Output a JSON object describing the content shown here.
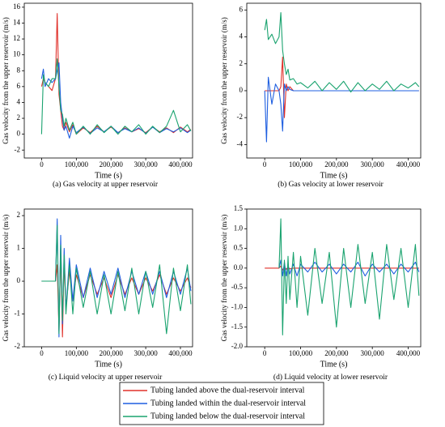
{
  "chart_data": [
    {
      "type": "line",
      "caption": "(a) Gas velocity at upper reservoir",
      "xlabel": "Time (s)",
      "ylabel": "Gas velocity from the upper reservoir (m/s)",
      "x": [
        0,
        5000,
        10000,
        20000,
        30000,
        40000,
        45000,
        50000,
        55000,
        60000,
        65000,
        70000,
        80000,
        90000,
        100000,
        120000,
        140000,
        160000,
        180000,
        200000,
        220000,
        240000,
        260000,
        280000,
        300000,
        320000,
        340000,
        360000,
        380000,
        400000,
        420000,
        430000
      ],
      "xlim": [
        -50000,
        435000
      ],
      "xticks": [
        0,
        {
          "value": 100000,
          "label": "100,000"
        },
        {
          "value": 200000,
          "label": "200,000"
        },
        {
          "value": 300000,
          "label": "300,000"
        },
        {
          "value": 400000,
          "label": "400,000"
        }
      ],
      "ylim": [
        -3,
        16.5
      ],
      "yticks": [
        -2,
        0,
        2,
        4,
        6,
        8,
        10,
        12,
        14,
        16
      ],
      "series": [
        {
          "name": "Tubing landed above the dual-reservoir interval",
          "color": "#e0302a",
          "values": [
            6,
            7,
            6.5,
            6,
            5.5,
            7,
            15.2,
            5,
            3,
            1,
            0.5,
            1.5,
            0.3,
            1.2,
            0,
            0.8,
            0.2,
            1,
            0.3,
            0.9,
            0.2,
            0.8,
            0.3,
            0.7,
            0.2,
            0.9,
            0.3,
            0.8,
            0.2,
            0.9,
            0.3,
            0.6
          ]
        },
        {
          "name": "Tubing landed within the dual-reservoir interval",
          "color": "#1f5fe0",
          "values": [
            7,
            8.2,
            6,
            7,
            6.5,
            7,
            8,
            9,
            4,
            2,
            0.5,
            1,
            -0.5,
            1,
            0.2,
            0.9,
            0.1,
            0.8,
            0.3,
            1,
            0.2,
            0.7,
            0.3,
            0.8,
            0.1,
            0.9,
            0.2,
            0.7,
            0.3,
            0.8,
            0.2,
            0.5
          ]
        },
        {
          "name": "Tubing landed below the dual-reservoir interval",
          "color": "#1aa36f",
          "values": [
            0,
            7.5,
            6.5,
            6,
            7,
            7,
            9.5,
            6,
            3,
            2.5,
            1,
            2,
            0.5,
            1.5,
            0,
            1,
            0,
            1.2,
            0.2,
            1,
            0,
            1,
            0.3,
            1.2,
            0,
            1,
            0.2,
            1,
            3,
            0.3,
            1.2,
            0.4
          ]
        }
      ]
    },
    {
      "type": "line",
      "caption": "(b) Gas velocity at lower reservoir",
      "xlabel": "Time (s)",
      "ylabel": "Gas velocity from the upper reservoir (m/s)",
      "x": [
        0,
        5000,
        10000,
        20000,
        30000,
        40000,
        45000,
        50000,
        55000,
        60000,
        65000,
        70000,
        80000,
        90000,
        100000,
        120000,
        140000,
        160000,
        180000,
        200000,
        220000,
        240000,
        260000,
        280000,
        300000,
        320000,
        340000,
        360000,
        380000,
        400000,
        420000,
        430000
      ],
      "xlim": [
        -50000,
        435000
      ],
      "xticks": [
        0,
        {
          "value": 100000,
          "label": "100,000"
        },
        {
          "value": 200000,
          "label": "200,000"
        },
        {
          "value": 300000,
          "label": "300,000"
        },
        {
          "value": 400000,
          "label": "400,000"
        }
      ],
      "ylim": [
        -5,
        6.5
      ],
      "yticks": [
        -4,
        -2,
        0,
        2,
        4,
        6
      ],
      "series": [
        {
          "color": "#e0302a",
          "values": [
            0,
            0,
            0,
            0,
            0,
            0,
            0.3,
            2.5,
            -2,
            0.5,
            0,
            0.3,
            0,
            0,
            0,
            0,
            0,
            0,
            0,
            0,
            0,
            0,
            0,
            0,
            0,
            0,
            0,
            0,
            0,
            0,
            0,
            0
          ]
        },
        {
          "color": "#1f5fe0",
          "values": [
            0,
            -3.8,
            1,
            -1,
            0.5,
            0,
            -1,
            -3,
            0.5,
            0,
            0.3,
            0.1,
            0,
            0,
            0,
            0,
            0,
            0,
            0,
            0,
            0,
            0,
            0,
            0,
            0,
            0,
            0,
            0,
            0,
            0,
            0,
            0
          ]
        },
        {
          "color": "#1aa36f",
          "values": [
            4.5,
            5.3,
            3.8,
            4.2,
            3.5,
            4,
            5.8,
            3,
            2,
            1.2,
            1.6,
            0.8,
            0.9,
            0.5,
            0.6,
            0.2,
            0.7,
            0,
            0.6,
            0.1,
            0.7,
            -0.1,
            0.6,
            0,
            0.5,
            0.1,
            0.7,
            0,
            0.5,
            0.2,
            0.6,
            0.3
          ]
        }
      ]
    },
    {
      "type": "line",
      "caption": "(c) Liquid velocity at upper reservoir",
      "xlabel": "Time (s)",
      "ylabel": "Gas velocity from the upper reservoir (m/s)",
      "x": [
        0,
        5000,
        10000,
        20000,
        30000,
        40000,
        45000,
        50000,
        55000,
        60000,
        65000,
        70000,
        80000,
        90000,
        100000,
        120000,
        140000,
        160000,
        180000,
        200000,
        220000,
        240000,
        260000,
        280000,
        300000,
        320000,
        340000,
        360000,
        380000,
        400000,
        420000,
        430000
      ],
      "xlim": [
        -50000,
        435000
      ],
      "xticks": [
        0,
        {
          "value": 100000,
          "label": "100,000"
        },
        {
          "value": 200000,
          "label": "200,000"
        },
        {
          "value": 300000,
          "label": "300,000"
        },
        {
          "value": 400000,
          "label": "400,000"
        }
      ],
      "ylim": [
        -2,
        2.2
      ],
      "yticks": [
        -2,
        -1,
        0,
        1,
        2
      ],
      "series": [
        {
          "color": "#e0302a",
          "values": [
            0,
            0,
            0,
            0,
            0,
            0,
            0.5,
            -1.5,
            1,
            -1.7,
            0.6,
            -0.8,
            0.3,
            -0.6,
            0.2,
            -0.5,
            0.2,
            -0.4,
            0.1,
            -0.5,
            0.2,
            -0.4,
            0.1,
            -0.4,
            0.1,
            -0.3,
            0.2,
            -0.4,
            0.1,
            -0.3,
            0.1,
            -0.2
          ]
        },
        {
          "color": "#1f5fe0",
          "values": [
            0,
            0,
            0,
            0,
            0,
            0,
            1.9,
            -1.7,
            1.4,
            -1.3,
            1,
            -0.9,
            0.7,
            -0.6,
            0.5,
            -0.5,
            0.4,
            -0.5,
            0.3,
            -0.4,
            0.4,
            -0.5,
            0.3,
            -0.4,
            0.3,
            -0.4,
            0.3,
            -0.5,
            0.3,
            -0.4,
            0.4,
            -0.3
          ]
        },
        {
          "color": "#1aa36f",
          "values": [
            0,
            0,
            0,
            0,
            0,
            0,
            1.7,
            -1.6,
            1.1,
            -1.2,
            0.8,
            -1,
            0.5,
            -1,
            0.4,
            -0.8,
            0.3,
            -1,
            0.2,
            -1,
            0.3,
            -0.9,
            0.4,
            -1,
            0.3,
            -0.8,
            0.5,
            -1.6,
            0.4,
            -0.9,
            0.5,
            -0.7
          ]
        }
      ]
    },
    {
      "type": "line",
      "caption": "(d) Liquid velocity at lower reservoir",
      "xlabel": "Time (s)",
      "ylabel": "Gas velocity from the upper reservoir (m/s)",
      "x": [
        0,
        5000,
        10000,
        20000,
        30000,
        40000,
        45000,
        50000,
        55000,
        60000,
        65000,
        70000,
        80000,
        90000,
        100000,
        120000,
        140000,
        160000,
        180000,
        200000,
        220000,
        240000,
        260000,
        280000,
        300000,
        320000,
        340000,
        360000,
        380000,
        400000,
        420000,
        430000
      ],
      "xlim": [
        -50000,
        435000
      ],
      "xticks": [
        0,
        {
          "value": 100000,
          "label": "100,000"
        },
        {
          "value": 200000,
          "label": "200,000"
        },
        {
          "value": 300000,
          "label": "300,000"
        },
        {
          "value": 400000,
          "label": "400,000"
        }
      ],
      "ylim": [
        -2,
        1.5
      ],
      "yticks": [
        {
          "value": -2,
          "label": "-2.0"
        },
        {
          "value": -1.5,
          "label": "-1.5"
        },
        {
          "value": -1,
          "label": "-1.0"
        },
        {
          "value": -0.5,
          "label": "-0.5"
        },
        {
          "value": 0,
          "label": "0.0"
        },
        {
          "value": 0.5,
          "label": "0.5"
        },
        {
          "value": 1,
          "label": "1.0"
        },
        {
          "value": 1.5,
          "label": "1.5"
        }
      ],
      "series": [
        {
          "color": "#e0302a",
          "values": [
            0,
            0,
            0,
            0,
            0,
            0,
            0.05,
            -0.05,
            0.03,
            -0.03,
            0.02,
            -0.02,
            0,
            0,
            0,
            0,
            0,
            0,
            0,
            0,
            0,
            0,
            0,
            0,
            0,
            0,
            0,
            0,
            0,
            0,
            0,
            0
          ]
        },
        {
          "color": "#1f5fe0",
          "values": [
            null,
            null,
            null,
            null,
            null,
            0,
            0.2,
            -0.2,
            0.15,
            -0.2,
            0.1,
            -0.15,
            0.1,
            -0.2,
            0.1,
            -0.1,
            0.15,
            -0.1,
            0.1,
            -0.15,
            0.1,
            -0.1,
            0.15,
            -0.2,
            0.1,
            -0.1,
            0.1,
            -0.15,
            0.1,
            -0.1,
            0.15,
            -0.1
          ]
        },
        {
          "color": "#1aa36f",
          "values": [
            null,
            null,
            null,
            null,
            null,
            0,
            1.25,
            -1.7,
            0.2,
            -0.9,
            0.3,
            -0.8,
            0.4,
            -1,
            0.3,
            -1.2,
            0.5,
            -0.9,
            0.4,
            -1.5,
            0.5,
            -1,
            0.6,
            -0.9,
            0.4,
            -1.3,
            0.6,
            -0.8,
            0.5,
            -1,
            0.6,
            -0.7
          ]
        }
      ]
    }
  ]
}
